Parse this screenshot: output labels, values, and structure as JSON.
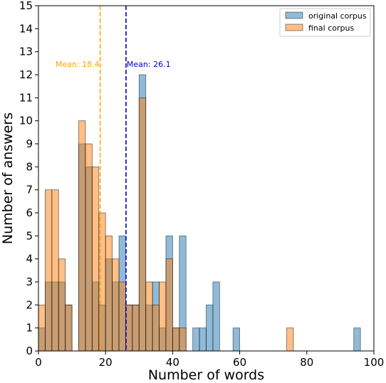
{
  "chart_data": {
    "type": "bar",
    "subtype": "overlaid-histogram",
    "xlabel": "Number of words",
    "ylabel": "Number of answers",
    "xlim": [
      0,
      100
    ],
    "ylim": [
      0,
      15
    ],
    "xticks": [
      0,
      20,
      40,
      60,
      80,
      100
    ],
    "yticks": [
      0,
      1,
      2,
      3,
      4,
      5,
      6,
      7,
      8,
      9,
      10,
      11,
      12,
      13,
      14,
      15
    ],
    "bin_width": 2,
    "bin_starts": [
      0,
      2,
      4,
      6,
      8,
      10,
      12,
      14,
      16,
      18,
      20,
      22,
      24,
      26,
      28,
      30,
      32,
      34,
      36,
      38,
      40,
      42,
      44,
      46,
      48,
      50,
      52,
      54,
      56,
      58,
      60,
      62,
      64,
      66,
      68,
      70,
      72,
      74,
      76,
      78,
      80,
      82,
      84,
      86,
      88,
      90,
      92,
      94
    ],
    "grid": false,
    "legend_position": "top-right",
    "series": [
      {
        "name": "original corpus",
        "color": "#1f77b4",
        "values": [
          1,
          3,
          3,
          3,
          2,
          0,
          9,
          8,
          3,
          2,
          4,
          3,
          5,
          2,
          2,
          12,
          2,
          3,
          1,
          5,
          1,
          5,
          0,
          1,
          1,
          2,
          3,
          0,
          0,
          1,
          0,
          0,
          0,
          0,
          0,
          0,
          0,
          0,
          0,
          0,
          0,
          0,
          0,
          0,
          0,
          0,
          0,
          1
        ]
      },
      {
        "name": "final corpus",
        "color": "#ff7f0e",
        "values": [
          2,
          7,
          7,
          4,
          2,
          0,
          10,
          9,
          8,
          6,
          5,
          4,
          3,
          2,
          2,
          11,
          3,
          2,
          3,
          4,
          1,
          1,
          0,
          0,
          0,
          0,
          0,
          0,
          0,
          0,
          0,
          0,
          0,
          0,
          0,
          0,
          0,
          1,
          0,
          0,
          0,
          0,
          0,
          0,
          0,
          0,
          0,
          0
        ]
      }
    ],
    "mean_lines": [
      {
        "label": "Mean: 18.4",
        "x": 18.4,
        "color": "#ffa500"
      },
      {
        "label": "Mean: 26.1",
        "x": 26.1,
        "color": "#0000cd"
      }
    ]
  }
}
